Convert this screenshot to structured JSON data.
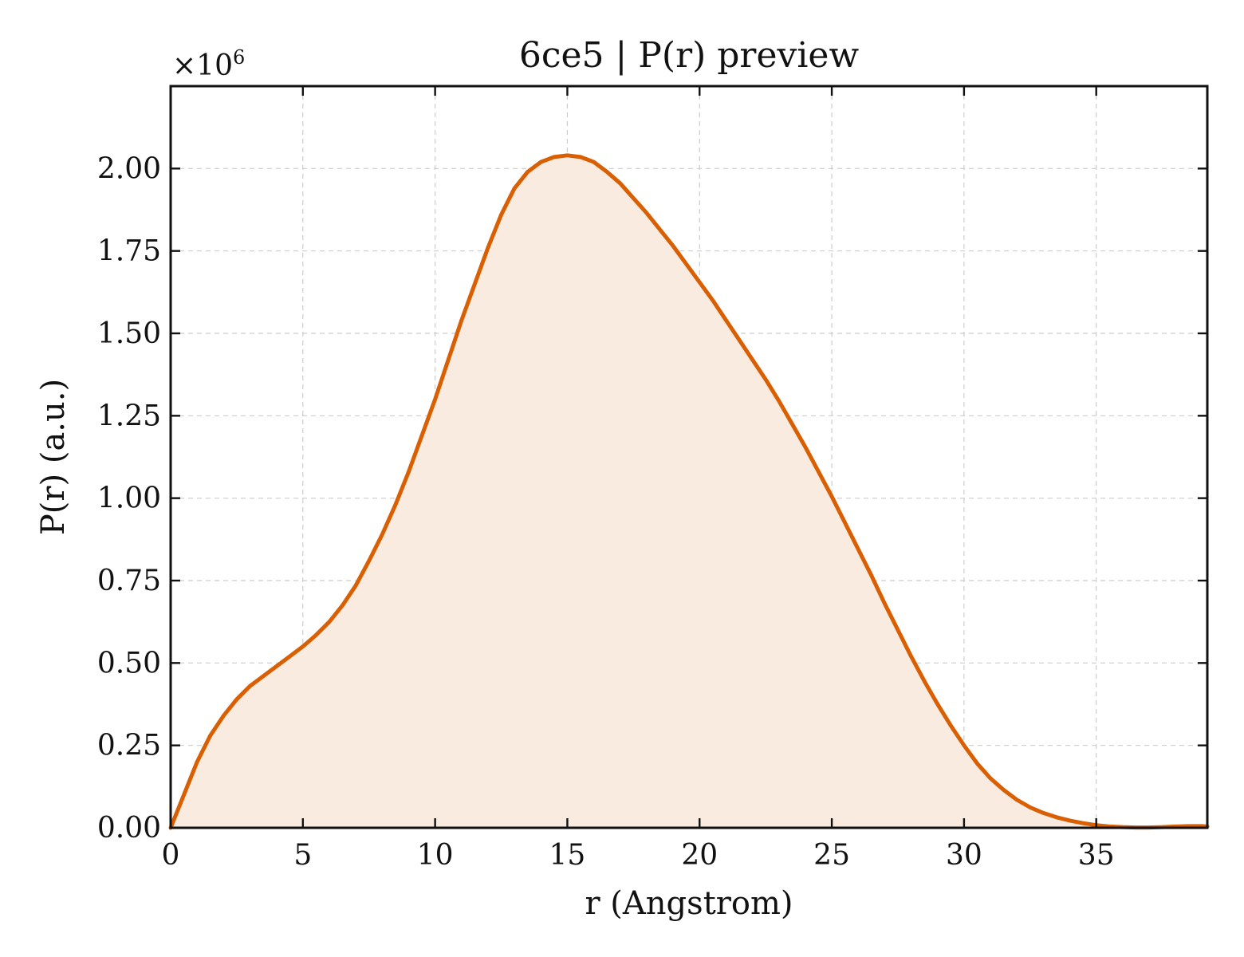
{
  "chart_data": {
    "type": "area",
    "title": "6ce5 | P(r) preview",
    "xlabel": "r (Angstrom)",
    "ylabel": "P(r) (a.u.)",
    "y_multiplier": "×10",
    "y_multiplier_exponent": "6",
    "xlim": [
      0,
      39.2
    ],
    "ylim": [
      0,
      2.25
    ],
    "x_ticks": [
      0,
      5,
      10,
      15,
      20,
      25,
      30,
      35
    ],
    "x_tick_labels": [
      "0",
      "5",
      "10",
      "15",
      "20",
      "25",
      "30",
      "35"
    ],
    "y_ticks": [
      0,
      0.25,
      0.5,
      0.75,
      1.0,
      1.25,
      1.5,
      1.75,
      2.0
    ],
    "y_tick_labels": [
      "0.00",
      "0.25",
      "0.50",
      "0.75",
      "1.00",
      "1.25",
      "1.50",
      "1.75",
      "2.00"
    ],
    "grid": true,
    "line_color": "#d95f02",
    "fill_color": "#f9ebe0",
    "series": [
      {
        "x": [
          0,
          0.5,
          1,
          1.5,
          2,
          2.5,
          3,
          3.5,
          4,
          4.5,
          5,
          5.5,
          6,
          6.5,
          7,
          7.5,
          8,
          8.5,
          9,
          9.5,
          10,
          10.5,
          11,
          11.5,
          12,
          12.5,
          13,
          13.5,
          14,
          14.5,
          15,
          15.5,
          16,
          16.5,
          17,
          17.5,
          18,
          18.5,
          19,
          19.5,
          20,
          20.5,
          21,
          21.5,
          22,
          22.5,
          23,
          23.5,
          24,
          24.5,
          25,
          25.5,
          26,
          26.5,
          27,
          27.5,
          28,
          28.5,
          29,
          29.5,
          30,
          30.5,
          31,
          31.5,
          32,
          32.5,
          33,
          33.5,
          34,
          34.5,
          35,
          35.5,
          36,
          36.5,
          37,
          37.5,
          38,
          38.5,
          39,
          39.2
        ],
        "y": [
          0,
          0.1,
          0.2,
          0.28,
          0.34,
          0.39,
          0.43,
          0.46,
          0.49,
          0.52,
          0.55,
          0.585,
          0.625,
          0.675,
          0.735,
          0.81,
          0.89,
          0.98,
          1.08,
          1.19,
          1.3,
          1.42,
          1.54,
          1.65,
          1.76,
          1.86,
          1.94,
          1.99,
          2.02,
          2.035,
          2.04,
          2.035,
          2.02,
          1.99,
          1.955,
          1.91,
          1.865,
          1.815,
          1.765,
          1.71,
          1.655,
          1.6,
          1.54,
          1.48,
          1.42,
          1.36,
          1.295,
          1.225,
          1.155,
          1.08,
          1.005,
          0.925,
          0.845,
          0.765,
          0.68,
          0.6,
          0.52,
          0.445,
          0.375,
          0.31,
          0.25,
          0.195,
          0.15,
          0.115,
          0.085,
          0.062,
          0.045,
          0.032,
          0.022,
          0.014,
          0.008,
          0.004,
          0.002,
          0.001,
          0.001,
          0.002,
          0.004,
          0.005,
          0.005,
          0.004
        ]
      }
    ]
  }
}
